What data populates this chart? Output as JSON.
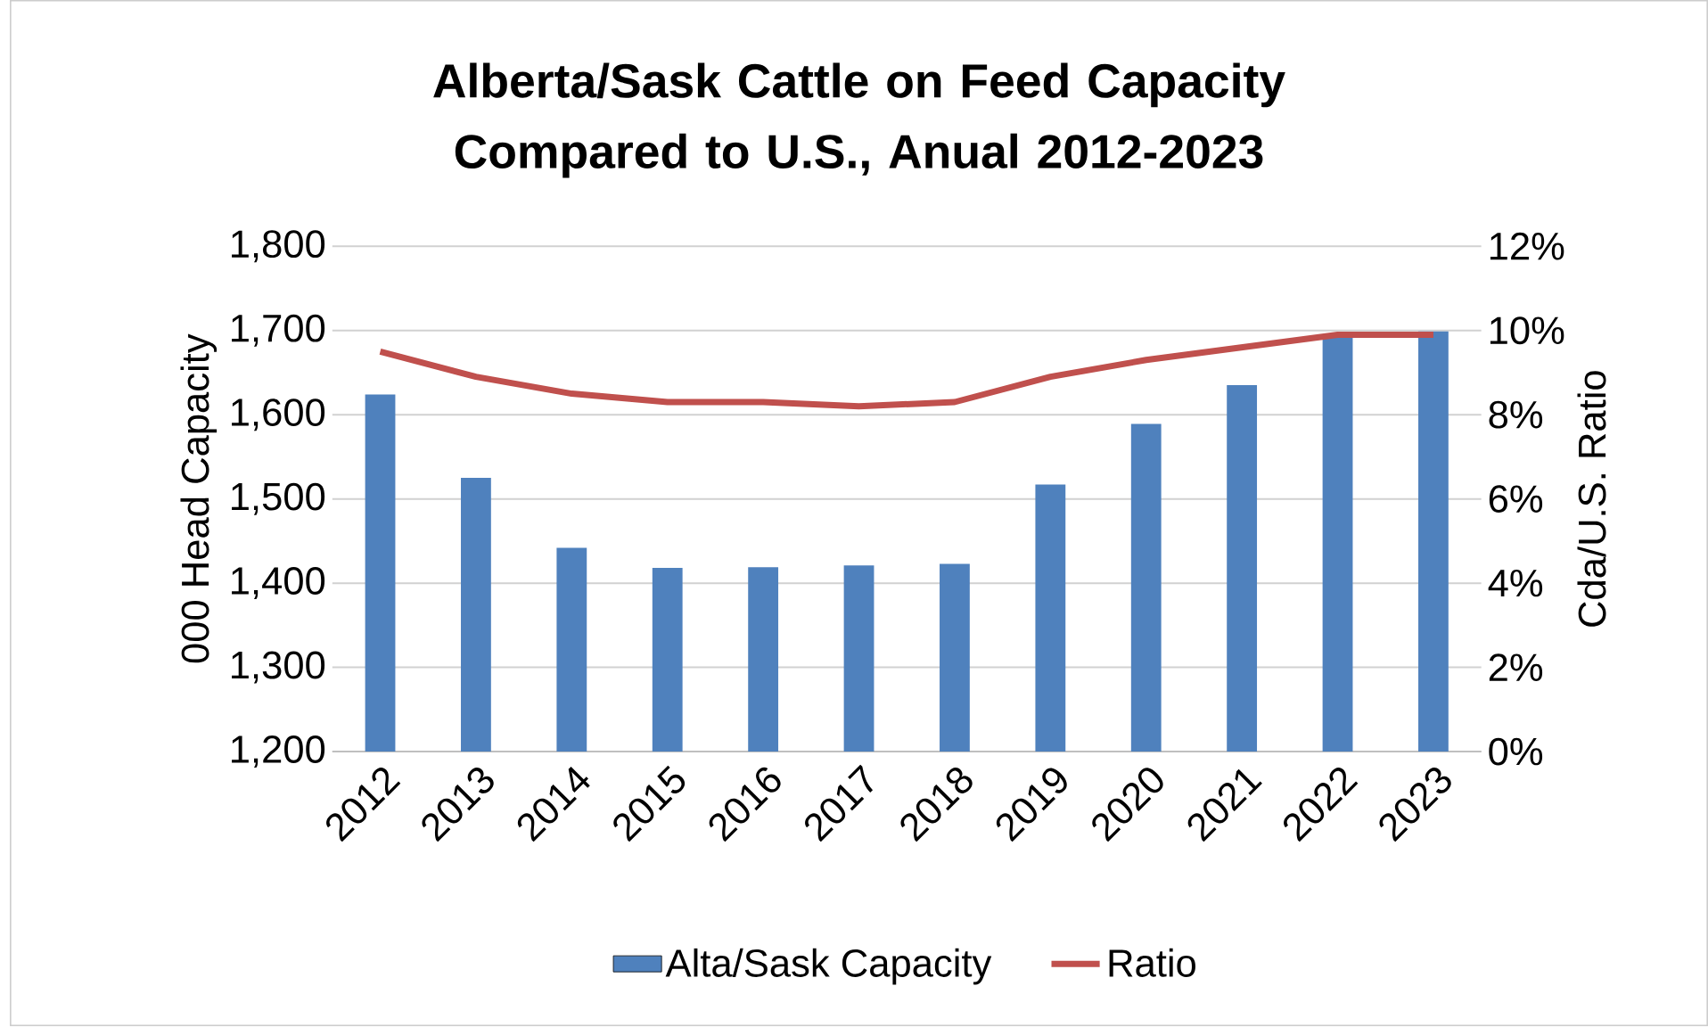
{
  "chart_data": {
    "type": "bar",
    "title": "Alberta/Sask Cattle on Feed Capacity Compared to U.S., Anual 2012-2023",
    "categories": [
      "2012",
      "2013",
      "2014",
      "2015",
      "2016",
      "2017",
      "2018",
      "2019",
      "2020",
      "2021",
      "2022",
      "2023"
    ],
    "series": [
      {
        "name": "Alta/Sask Capacity",
        "color": "#4f81bd",
        "values": [
          1624,
          1525,
          1442,
          1418,
          1419,
          1421,
          1423,
          1517,
          1589,
          1635,
          1692,
          1699
        ]
      },
      {
        "name": "Ratio",
        "type": "line",
        "axis": "y2",
        "color": "#c0504d",
        "values": [
          9.5,
          8.9,
          8.5,
          8.3,
          8.3,
          8.2,
          8.3,
          8.9,
          9.3,
          9.6,
          9.9,
          9.9
        ]
      }
    ],
    "ylabel": "000 Head Capacity",
    "y2label": "Cda/U.S. Ratio",
    "ylim": [
      1200,
      1800
    ],
    "yticks": [
      {
        "value": 1200,
        "label": "1,200"
      },
      {
        "value": 1300,
        "label": "1,300"
      },
      {
        "value": 1400,
        "label": "1,400"
      },
      {
        "value": 1500,
        "label": "1,500"
      },
      {
        "value": 1600,
        "label": "1,600"
      },
      {
        "value": 1700,
        "label": "1,700"
      },
      {
        "value": 1800,
        "label": "1,800"
      }
    ],
    "y2lim": [
      0,
      12
    ],
    "y2ticks": [
      {
        "value": 0,
        "label": "0%"
      },
      {
        "value": 2,
        "label": "2%"
      },
      {
        "value": 4,
        "label": "4%"
      },
      {
        "value": 6,
        "label": "6%"
      },
      {
        "value": 8,
        "label": "8%"
      },
      {
        "value": 10,
        "label": "10%"
      },
      {
        "value": 12,
        "label": "12%"
      }
    ],
    "grid": "y",
    "legend": "bottom",
    "marker": "none"
  }
}
